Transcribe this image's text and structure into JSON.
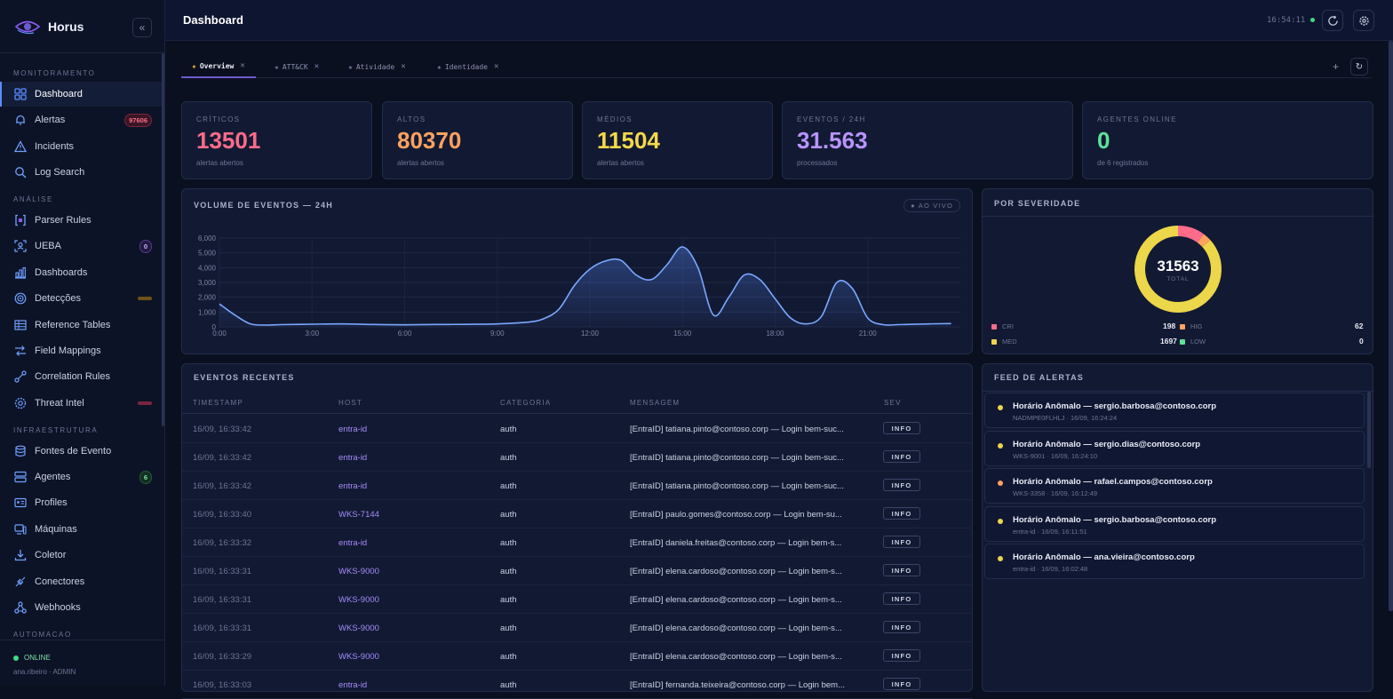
{
  "app": {
    "name": "Horus",
    "collapse_glyph": "«"
  },
  "sidebar": {
    "sections": [
      {
        "title": "MONITORAMENTO"
      },
      {
        "title": "ANÁLISE"
      },
      {
        "title": "INFRAESTRUTURA"
      },
      {
        "title": "AUTOMACAO"
      }
    ],
    "items": [
      {
        "label": "Dashboard",
        "icon": "grid-icon",
        "active": true
      },
      {
        "label": "Alertas",
        "icon": "bell-icon",
        "badge": "97606"
      },
      {
        "label": "Incidents",
        "icon": "warning-triangle-icon"
      },
      {
        "label": "Log Search",
        "icon": "search-icon"
      },
      {
        "label": "Parser Rules",
        "icon": "brackets-icon"
      },
      {
        "label": "UEBA",
        "icon": "user-scan-icon",
        "badge": "0"
      },
      {
        "label": "Dashboards",
        "icon": "bar-chart-icon"
      },
      {
        "label": "Detecções",
        "icon": "target-icon"
      },
      {
        "label": "Reference Tables",
        "icon": "table-icon"
      },
      {
        "label": "Field Mappings",
        "icon": "arrows-icon"
      },
      {
        "label": "Correlation Rules",
        "icon": "link-icon"
      },
      {
        "label": "Threat Intel",
        "icon": "gear-shield-icon"
      },
      {
        "label": "Fontes de Evento",
        "icon": "database-icon"
      },
      {
        "label": "Agentes",
        "icon": "server-icon",
        "badge": "6"
      },
      {
        "label": "Profiles",
        "icon": "id-card-icon"
      },
      {
        "label": "Máquinas",
        "icon": "monitor-icon"
      },
      {
        "label": "Coletor",
        "icon": "download-icon"
      },
      {
        "label": "Conectores",
        "icon": "plug-icon"
      },
      {
        "label": "Webhooks",
        "icon": "webhook-icon"
      }
    ],
    "footer": {
      "status": "ONLINE",
      "user": "ana.ribeiro · ADMIN"
    }
  },
  "header": {
    "title": "Dashboard",
    "clock": "16:54:11"
  },
  "tabs": [
    {
      "label": "Overview",
      "active": true
    },
    {
      "label": "ATT&CK"
    },
    {
      "label": "Atividade"
    },
    {
      "label": "Identidade"
    }
  ],
  "tabs_extra": {
    "add": "+",
    "refresh": "↻",
    "close": "✕",
    "star": "★"
  },
  "stats": [
    {
      "label": "CRÍTICOS",
      "value": "13501",
      "sub": "alertas abertos",
      "color": "#ff6b8a"
    },
    {
      "label": "ALTOS",
      "value": "80370",
      "sub": "alertas abertos",
      "color": "#ffa25e"
    },
    {
      "label": "MÉDIOS",
      "value": "11504",
      "sub": "alertas abertos",
      "color": "#f5d84a"
    },
    {
      "label": "EVENTOS / 24H",
      "value": "31.563",
      "sub": "processados",
      "color": "#b794ff"
    },
    {
      "label": "AGENTES ONLINE",
      "value": "0",
      "sub": "de 6 registrados",
      "color": "#5ee29a"
    }
  ],
  "volume": {
    "title": "VOLUME DE EVENTOS — 24H",
    "live": "● AO VIVO",
    "chart_data": {
      "type": "area",
      "x_ticks": [
        "0:00",
        "3:00",
        "6:00",
        "9:00",
        "12:00",
        "15:00",
        "18:00",
        "21:00"
      ],
      "y_ticks": [
        "0",
        "1,000",
        "2,000",
        "3,000",
        "4,000",
        "5,000",
        "6,000"
      ],
      "ylim": [
        0,
        6000
      ],
      "x": [
        0,
        0.5,
        1,
        1.5,
        2,
        3,
        4,
        5,
        6,
        7,
        8,
        9,
        10,
        10.5,
        11,
        11.5,
        12,
        12.5,
        13,
        13.5,
        14,
        14.5,
        15,
        15.5,
        16,
        16.5,
        17,
        17.5,
        18,
        18.5,
        19,
        19.5,
        20,
        20.5,
        21,
        21.5,
        22,
        23,
        23.7
      ],
      "y": [
        1550,
        800,
        200,
        120,
        150,
        180,
        200,
        160,
        140,
        160,
        170,
        200,
        320,
        550,
        1200,
        2800,
        3900,
        4450,
        4500,
        3500,
        3200,
        4200,
        5400,
        4000,
        800,
        2000,
        3500,
        3200,
        1900,
        600,
        200,
        700,
        3000,
        2600,
        600,
        150,
        150,
        200,
        220
      ],
      "line_color": "#7aa8ff"
    }
  },
  "severity": {
    "title": "POR SEVERIDADE",
    "total": "31563",
    "total_label": "TOTAL",
    "chart_data": {
      "type": "pie",
      "labels": [
        "CRI",
        "HIG",
        "MED",
        "LOW"
      ],
      "values": [
        198,
        62,
        1697,
        0
      ],
      "colors": [
        "#ff6b8a",
        "#ffa25e",
        "#ecd64a",
        "#5ee29a"
      ]
    },
    "legend": [
      {
        "label": "CRI",
        "value": "198"
      },
      {
        "label": "HIG",
        "value": "62"
      },
      {
        "label": "MED",
        "value": "1697"
      },
      {
        "label": "LOW",
        "value": "0"
      }
    ]
  },
  "events": {
    "title": "EVENTOS RECENTES",
    "columns": [
      "TIMESTAMP",
      "HOST",
      "CATEGORIA",
      "MENSAGEM",
      "SEV"
    ],
    "rows": [
      {
        "ts": "16/09, 16:33:42",
        "host": "entra-id",
        "cat": "auth",
        "msg": "[EntraID] tatiana.pinto@contoso.corp — Login bem-suc...",
        "sev": "INFO"
      },
      {
        "ts": "16/09, 16:33:42",
        "host": "entra-id",
        "cat": "auth",
        "msg": "[EntraID] tatiana.pinto@contoso.corp — Login bem-suc...",
        "sev": "INFO"
      },
      {
        "ts": "16/09, 16:33:42",
        "host": "entra-id",
        "cat": "auth",
        "msg": "[EntraID] tatiana.pinto@contoso.corp — Login bem-suc...",
        "sev": "INFO"
      },
      {
        "ts": "16/09, 16:33:40",
        "host": "WKS-7144",
        "cat": "auth",
        "msg": "[EntraID] paulo.gomes@contoso.corp — Login bem-su...",
        "sev": "INFO"
      },
      {
        "ts": "16/09, 16:33:32",
        "host": "entra-id",
        "cat": "auth",
        "msg": "[EntraID] daniela.freitas@contoso.corp — Login bem-s...",
        "sev": "INFO"
      },
      {
        "ts": "16/09, 16:33:31",
        "host": "WKS-9000",
        "cat": "auth",
        "msg": "[EntraID] elena.cardoso@contoso.corp — Login bem-s...",
        "sev": "INFO"
      },
      {
        "ts": "16/09, 16:33:31",
        "host": "WKS-9000",
        "cat": "auth",
        "msg": "[EntraID] elena.cardoso@contoso.corp — Login bem-s...",
        "sev": "INFO"
      },
      {
        "ts": "16/09, 16:33:31",
        "host": "WKS-9000",
        "cat": "auth",
        "msg": "[EntraID] elena.cardoso@contoso.corp — Login bem-s...",
        "sev": "INFO"
      },
      {
        "ts": "16/09, 16:33:29",
        "host": "WKS-9000",
        "cat": "auth",
        "msg": "[EntraID] elena.cardoso@contoso.corp — Login bem-s...",
        "sev": "INFO"
      },
      {
        "ts": "16/09, 16:33:03",
        "host": "entra-id",
        "cat": "auth",
        "msg": "[EntraID] fernanda.teixeira@contoso.corp — Login bem...",
        "sev": "INFO"
      }
    ]
  },
  "feed": {
    "title": "FEED DE ALERTAS",
    "items": [
      {
        "title": "Horário Anômalo — sergio.barbosa@contoso.corp",
        "sub": "NADMPE0FLHLJ · 16/09, 16:24:24",
        "color": "#ecd64a"
      },
      {
        "title": "Horário Anômalo — sergio.dias@contoso.corp",
        "sub": "WKS-9001 · 16/09, 16:24:10",
        "color": "#ecd64a"
      },
      {
        "title": "Horário Anômalo — rafael.campos@contoso.corp",
        "sub": "WKS-3358 · 16/09, 16:12:49",
        "color": "#ffa25e"
      },
      {
        "title": "Horário Anômalo — sergio.barbosa@contoso.corp",
        "sub": "entra-id · 16/09, 16:11:51",
        "color": "#ecd64a"
      },
      {
        "title": "Horário Anômalo — ana.vieira@contoso.corp",
        "sub": "entra-id · 16/09, 16:02:48",
        "color": "#ecd64a"
      }
    ]
  }
}
